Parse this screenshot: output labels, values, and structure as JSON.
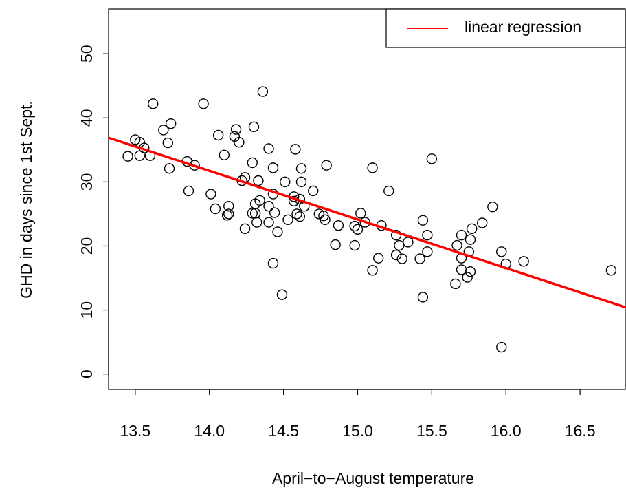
{
  "chart_data": {
    "type": "scatter",
    "x_label": "April−to−August temperature",
    "y_label": "GHD in days since 1st Sept.",
    "xlim": [
      13.32,
      16.81
    ],
    "ylim": [
      -2.4,
      57.0
    ],
    "xticks": [
      13.5,
      {
        "value": 14,
        "label": "14.0"
      },
      14.5,
      {
        "value": 15,
        "label": "15.0"
      },
      15.5,
      {
        "value": 16,
        "label": "16.0"
      },
      16.5
    ],
    "yticks": [
      0,
      10,
      20,
      30,
      40,
      50
    ],
    "legend": "top-right",
    "series": [
      {
        "type": "scatter",
        "color": "#000000",
        "x": [
          13.45,
          13.5,
          13.53,
          13.53,
          13.56,
          13.6,
          13.62,
          13.69,
          13.74,
          13.72,
          13.73,
          13.85,
          13.9,
          13.86,
          13.96,
          14.01,
          14.04,
          14.06,
          14.1,
          14.12,
          14.13,
          14.13,
          14.17,
          14.18,
          14.2,
          14.3,
          14.22,
          14.24,
          14.24,
          14.29,
          14.29,
          14.31,
          14.31,
          14.33,
          14.32,
          14.34,
          14.36,
          14.4,
          14.4,
          14.4,
          14.43,
          14.43,
          14.44,
          14.43,
          14.46,
          14.51,
          14.49,
          14.53,
          14.58,
          14.57,
          14.57,
          14.59,
          14.62,
          14.62,
          14.61,
          14.64,
          14.61,
          14.7,
          14.74,
          14.77,
          14.78,
          14.79,
          14.87,
          14.85,
          14.98,
          14.98,
          15.0,
          15.02,
          15.05,
          15.1,
          15.1,
          15.14,
          15.16,
          15.21,
          15.26,
          15.26,
          15.28,
          15.3,
          15.34,
          15.42,
          15.44,
          15.44,
          15.47,
          15.47,
          15.5,
          15.66,
          15.67,
          15.7,
          15.7,
          15.7,
          15.74,
          15.75,
          15.76,
          15.76,
          15.77,
          15.84,
          15.91,
          15.97,
          15.97,
          16.0,
          16.12,
          16.71
        ],
        "y": [
          34.0,
          36.6,
          36.2,
          34.1,
          35.3,
          34.1,
          42.2,
          38.1,
          39.1,
          36.1,
          32.1,
          33.2,
          32.6,
          28.6,
          42.2,
          28.1,
          25.8,
          37.3,
          34.2,
          24.8,
          26.2,
          25.0,
          37.1,
          38.2,
          36.2,
          38.6,
          30.2,
          30.7,
          22.7,
          33.0,
          25.1,
          26.6,
          25.1,
          30.2,
          23.7,
          27.1,
          44.1,
          35.2,
          26.2,
          23.7,
          32.2,
          28.1,
          25.2,
          17.3,
          22.2,
          30.0,
          12.4,
          24.1,
          35.1,
          27.7,
          27.0,
          25.0,
          32.1,
          30.0,
          27.3,
          26.2,
          24.6,
          28.6,
          25.0,
          24.7,
          24.1,
          32.6,
          23.2,
          20.2,
          23.1,
          20.1,
          22.6,
          25.1,
          23.7,
          32.2,
          16.2,
          18.1,
          23.2,
          28.6,
          21.7,
          18.6,
          20.1,
          18.0,
          20.6,
          18.0,
          24.0,
          12.0,
          21.7,
          19.1,
          33.6,
          14.1,
          20.1,
          21.7,
          18.1,
          16.3,
          15.1,
          19.1,
          16.0,
          21.0,
          22.7,
          23.6,
          26.1,
          19.1,
          4.2,
          17.2,
          17.6,
          16.2
        ]
      },
      {
        "type": "line",
        "name": "linear regression",
        "color": "#ff0000",
        "x": [
          13.32,
          16.81
        ],
        "y": [
          36.9,
          10.4
        ]
      }
    ]
  }
}
